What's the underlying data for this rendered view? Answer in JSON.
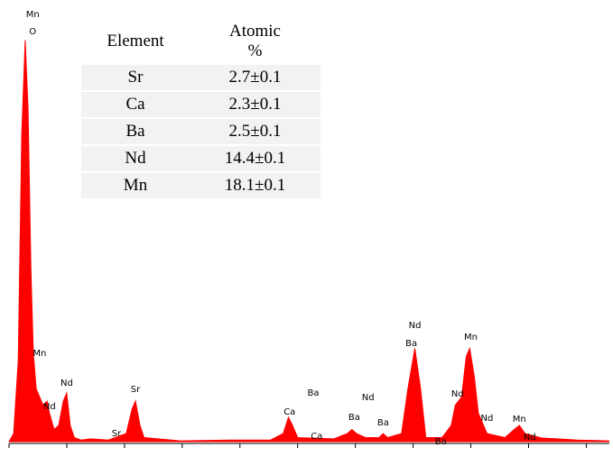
{
  "chart_data": {
    "type": "spectrum",
    "color": "#ff0000",
    "x": [
      0,
      0.08,
      0.16,
      0.22,
      0.28,
      0.33,
      0.38,
      0.42,
      0.47,
      0.53,
      0.59,
      0.66,
      0.7,
      0.78,
      0.86,
      0.94,
      1.0,
      1.06,
      1.13,
      1.25,
      1.41,
      1.72,
      2.03,
      2.13,
      2.19,
      2.27,
      2.34,
      2.97,
      3.91,
      4.53,
      4.75,
      4.84,
      4.91,
      5.0,
      5.63,
      5.86,
      5.94,
      6.02,
      6.17,
      6.41,
      6.48,
      6.56,
      6.8,
      6.91,
      7.03,
      7.13,
      7.22,
      7.5,
      7.66,
      7.73,
      7.84,
      7.92,
      7.98,
      8.06,
      8.13,
      8.28,
      8.59,
      8.75,
      8.84,
      8.94,
      9.22,
      9.84,
      10.39
    ],
    "values": [
      0,
      2,
      20,
      76,
      99,
      82,
      42,
      22,
      13,
      11,
      9,
      10,
      7,
      3,
      4,
      10,
      12,
      4,
      1,
      0.4,
      0.7,
      0.4,
      2,
      8,
      10,
      4,
      1,
      0.2,
      0.4,
      0.4,
      2,
      6,
      4,
      1,
      0.7,
      2,
      3,
      2,
      1,
      1,
      2,
      1,
      2,
      13,
      23,
      13,
      1,
      1,
      4,
      9,
      11,
      21,
      23,
      16,
      7,
      2,
      1,
      3,
      4,
      2,
      0.9,
      0.4,
      0.2
    ],
    "xlim": [
      0,
      10.4
    ],
    "ylim": [
      0,
      100
    ],
    "xticks": [
      0,
      1,
      2,
      3,
      4,
      5,
      6,
      7,
      8,
      9,
      10
    ],
    "annotations": [
      {
        "text": "Mn",
        "x": 0.41,
        "y": 105.3
      },
      {
        "text": "O",
        "x": 0.41,
        "y": 101.1
      },
      {
        "text": "Mn",
        "x": 0.53,
        "y": 21.8
      },
      {
        "text": "Nd",
        "x": 1.0,
        "y": 14.4
      },
      {
        "text": "Nd",
        "x": 0.7,
        "y": 8.7
      },
      {
        "text": "Sr",
        "x": 2.19,
        "y": 12.9
      },
      {
        "text": "Sr",
        "x": 1.86,
        "y": 2
      },
      {
        "text": "Ca",
        "x": 4.86,
        "y": 7.3
      },
      {
        "text": "Ca",
        "x": 5.33,
        "y": 1.3
      },
      {
        "text": "Ba",
        "x": 5.27,
        "y": 12
      },
      {
        "text": "Nd",
        "x": 6.22,
        "y": 10.9
      },
      {
        "text": "Ba",
        "x": 5.98,
        "y": 6
      },
      {
        "text": "Ba",
        "x": 6.48,
        "y": 4.7
      },
      {
        "text": "Nd",
        "x": 7.03,
        "y": 28.7
      },
      {
        "text": "Ba",
        "x": 6.97,
        "y": 24.2
      },
      {
        "text": "Mn",
        "x": 8.0,
        "y": 25.8
      },
      {
        "text": "Nd",
        "x": 7.77,
        "y": 11.8
      },
      {
        "text": "Nd",
        "x": 8.28,
        "y": 5.8
      },
      {
        "text": "Mn",
        "x": 8.84,
        "y": 5.6
      },
      {
        "text": "Nd",
        "x": 9.02,
        "y": 1.1
      },
      {
        "text": "Ba",
        "x": 7.48,
        "y": 0
      }
    ]
  },
  "table": {
    "header": [
      "Element",
      "Atomic %"
    ],
    "rows": [
      [
        "Sr",
        "2.7±0.1"
      ],
      [
        "Ca",
        "2.3±0.1"
      ],
      [
        "Ba",
        "2.5±0.1"
      ],
      [
        "Nd",
        "14.4±0.1"
      ],
      [
        "Mn",
        "18.1±0.1"
      ]
    ]
  }
}
